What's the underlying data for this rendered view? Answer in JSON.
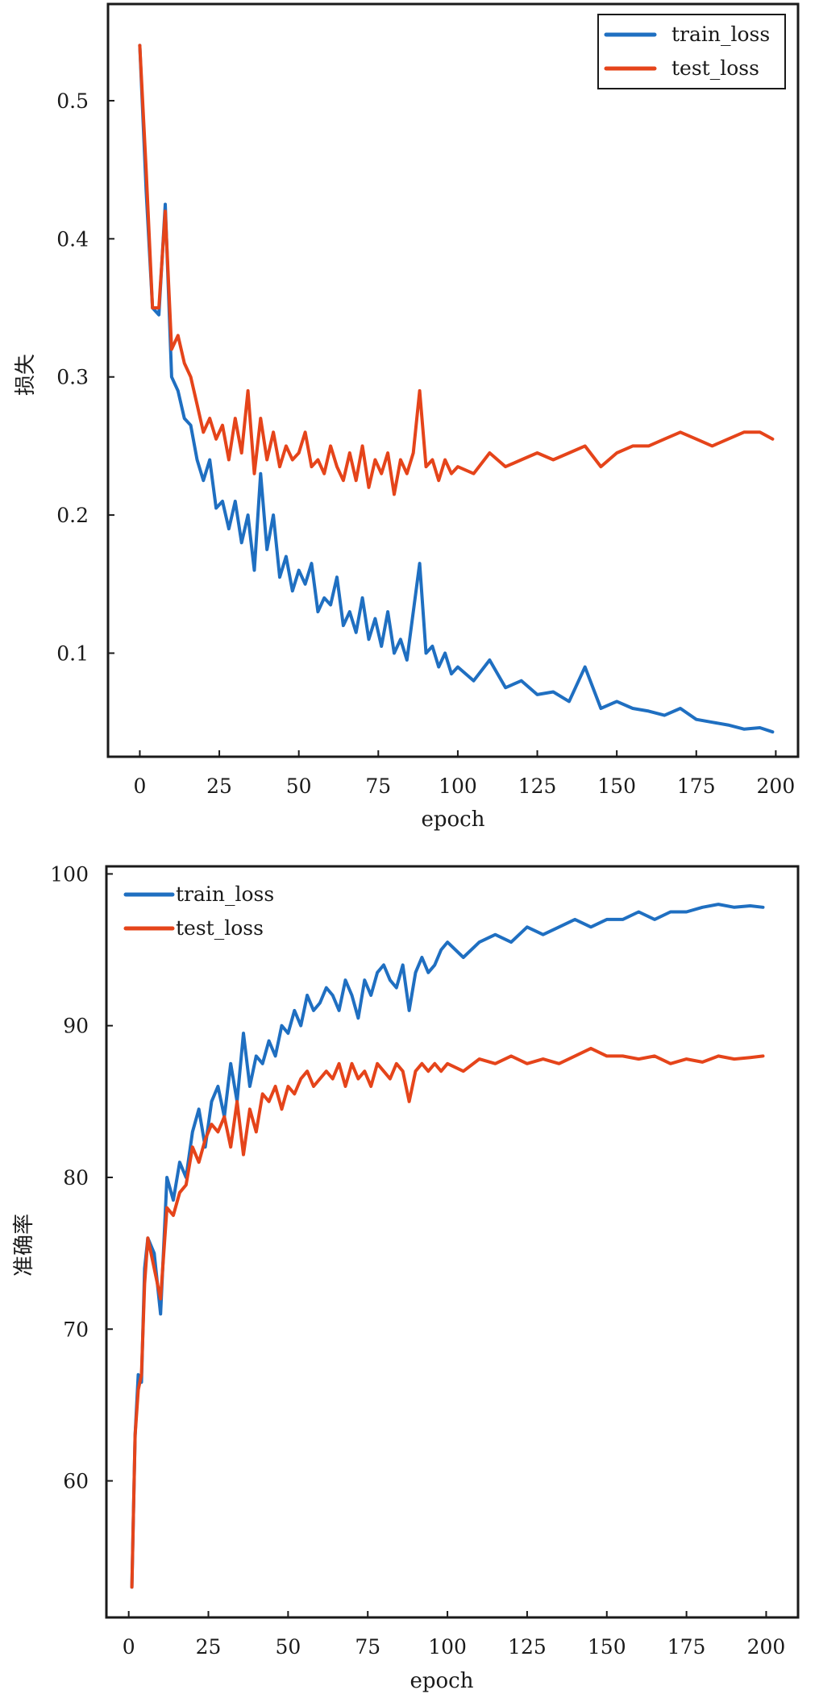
{
  "colors": {
    "train": "#1f6fc1",
    "test": "#e5441a"
  },
  "chart_data": [
    {
      "type": "line",
      "xlabel": "epoch",
      "ylabel": "损失",
      "xlim": [
        -10,
        207
      ],
      "ylim": [
        0.025,
        0.57
      ],
      "xticks": [
        0,
        25,
        50,
        75,
        100,
        125,
        150,
        175,
        200
      ],
      "xtick_labels": [
        "0",
        "25",
        "50",
        "75",
        "100",
        "125",
        "150",
        "175",
        "200"
      ],
      "yticks": [
        0.1,
        0.2,
        0.3,
        0.4,
        0.5
      ],
      "ytick_labels": [
        "0.1",
        "0.2",
        "0.3",
        "0.4",
        "0.5"
      ],
      "grid": false,
      "legend_position": "top-right",
      "series": [
        {
          "name": "train_loss",
          "color": "#1f6fc1",
          "x": [
            0,
            2,
            4,
            6,
            8,
            10,
            12,
            14,
            16,
            18,
            20,
            22,
            24,
            26,
            28,
            30,
            32,
            34,
            36,
            38,
            40,
            42,
            44,
            46,
            48,
            50,
            52,
            54,
            56,
            58,
            60,
            62,
            64,
            66,
            68,
            70,
            72,
            74,
            76,
            78,
            80,
            82,
            84,
            86,
            88,
            90,
            92,
            94,
            96,
            98,
            100,
            105,
            110,
            115,
            120,
            125,
            130,
            135,
            140,
            145,
            150,
            155,
            160,
            165,
            170,
            175,
            180,
            185,
            190,
            195,
            199
          ],
          "y": [
            0.54,
            0.435,
            0.35,
            0.345,
            0.425,
            0.3,
            0.29,
            0.27,
            0.265,
            0.24,
            0.225,
            0.24,
            0.205,
            0.21,
            0.19,
            0.21,
            0.18,
            0.2,
            0.16,
            0.23,
            0.175,
            0.2,
            0.155,
            0.17,
            0.145,
            0.16,
            0.15,
            0.165,
            0.13,
            0.14,
            0.135,
            0.155,
            0.12,
            0.13,
            0.115,
            0.14,
            0.11,
            0.125,
            0.105,
            0.13,
            0.1,
            0.11,
            0.095,
            0.13,
            0.165,
            0.1,
            0.105,
            0.09,
            0.1,
            0.085,
            0.09,
            0.08,
            0.095,
            0.075,
            0.08,
            0.07,
            0.072,
            0.065,
            0.09,
            0.06,
            0.065,
            0.06,
            0.058,
            0.055,
            0.06,
            0.052,
            0.05,
            0.048,
            0.045,
            0.046,
            0.043
          ]
        },
        {
          "name": "test_loss",
          "color": "#e5441a",
          "x": [
            0,
            2,
            4,
            6,
            8,
            10,
            12,
            14,
            16,
            18,
            20,
            22,
            24,
            26,
            28,
            30,
            32,
            34,
            36,
            38,
            40,
            42,
            44,
            46,
            48,
            50,
            52,
            54,
            56,
            58,
            60,
            62,
            64,
            66,
            68,
            70,
            72,
            74,
            76,
            78,
            80,
            82,
            84,
            86,
            88,
            90,
            92,
            94,
            96,
            98,
            100,
            105,
            110,
            115,
            120,
            125,
            130,
            135,
            140,
            145,
            150,
            155,
            160,
            165,
            170,
            175,
            180,
            185,
            190,
            195,
            199
          ],
          "y": [
            0.54,
            0.45,
            0.35,
            0.35,
            0.42,
            0.32,
            0.33,
            0.31,
            0.3,
            0.28,
            0.26,
            0.27,
            0.255,
            0.265,
            0.24,
            0.27,
            0.245,
            0.29,
            0.23,
            0.27,
            0.24,
            0.26,
            0.235,
            0.25,
            0.24,
            0.245,
            0.26,
            0.235,
            0.24,
            0.23,
            0.25,
            0.235,
            0.225,
            0.245,
            0.225,
            0.25,
            0.22,
            0.24,
            0.23,
            0.245,
            0.215,
            0.24,
            0.23,
            0.245,
            0.29,
            0.235,
            0.24,
            0.225,
            0.24,
            0.23,
            0.235,
            0.23,
            0.245,
            0.235,
            0.24,
            0.245,
            0.24,
            0.245,
            0.25,
            0.235,
            0.245,
            0.25,
            0.25,
            0.255,
            0.26,
            0.255,
            0.25,
            0.255,
            0.26,
            0.26,
            0.255
          ]
        }
      ]
    },
    {
      "type": "line",
      "xlabel": "epoch",
      "ylabel": "准确率",
      "xlim": [
        -7,
        210
      ],
      "ylim": [
        51,
        100.5
      ],
      "xticks": [
        0,
        25,
        50,
        75,
        100,
        125,
        150,
        175,
        200
      ],
      "xtick_labels": [
        "0",
        "25",
        "50",
        "75",
        "100",
        "125",
        "150",
        "175",
        "200"
      ],
      "yticks": [
        60,
        70,
        80,
        90,
        100
      ],
      "ytick_labels": [
        "60",
        "70",
        "80",
        "90",
        "100"
      ],
      "grid": false,
      "legend_position": "top-left",
      "series": [
        {
          "name": "train_loss",
          "color": "#1f6fc1",
          "x": [
            1,
            2,
            3,
            4,
            5,
            6,
            8,
            10,
            12,
            14,
            16,
            18,
            20,
            22,
            24,
            26,
            28,
            30,
            32,
            34,
            36,
            38,
            40,
            42,
            44,
            46,
            48,
            50,
            52,
            54,
            56,
            58,
            60,
            62,
            64,
            66,
            68,
            70,
            72,
            74,
            76,
            78,
            80,
            82,
            84,
            86,
            88,
            90,
            92,
            94,
            96,
            98,
            100,
            105,
            110,
            115,
            120,
            125,
            130,
            135,
            140,
            145,
            150,
            155,
            160,
            165,
            170,
            175,
            180,
            185,
            190,
            195,
            199
          ],
          "y": [
            53,
            63,
            67,
            66.5,
            74,
            76,
            75,
            71,
            80,
            78.5,
            81,
            80,
            83,
            84.5,
            82,
            85,
            86,
            84,
            87.5,
            85,
            89.5,
            86,
            88,
            87.5,
            89,
            88,
            90,
            89.5,
            91,
            90,
            92,
            91,
            91.5,
            92.5,
            92,
            91,
            93,
            92,
            90.5,
            93,
            92,
            93.5,
            94,
            93,
            92.5,
            94,
            91,
            93.5,
            94.5,
            93.5,
            94,
            95,
            95.5,
            94.5,
            95.5,
            96,
            95.5,
            96.5,
            96,
            96.5,
            97,
            96.5,
            97,
            97,
            97.5,
            97,
            97.5,
            97.5,
            97.8,
            98,
            97.8,
            97.9,
            97.8
          ]
        },
        {
          "name": "test_loss",
          "color": "#e5441a",
          "x": [
            1,
            2,
            3,
            4,
            5,
            6,
            8,
            10,
            12,
            14,
            16,
            18,
            20,
            22,
            24,
            26,
            28,
            30,
            32,
            34,
            36,
            38,
            40,
            42,
            44,
            46,
            48,
            50,
            52,
            54,
            56,
            58,
            60,
            62,
            64,
            66,
            68,
            70,
            72,
            74,
            76,
            78,
            80,
            82,
            84,
            86,
            88,
            90,
            92,
            94,
            96,
            98,
            100,
            105,
            110,
            115,
            120,
            125,
            130,
            135,
            140,
            145,
            150,
            155,
            160,
            165,
            170,
            175,
            180,
            185,
            190,
            195,
            199
          ],
          "y": [
            53,
            63,
            66,
            67,
            73,
            76,
            74,
            72,
            78,
            77.5,
            79,
            79.5,
            82,
            81,
            82.5,
            83.5,
            83,
            84,
            82,
            85,
            81.5,
            84.5,
            83,
            85.5,
            85,
            86,
            84.5,
            86,
            85.5,
            86.5,
            87,
            86,
            86.5,
            87,
            86.5,
            87.5,
            86,
            87.5,
            86.5,
            87,
            86,
            87.5,
            87,
            86.5,
            87.5,
            87,
            85,
            87,
            87.5,
            87,
            87.5,
            87,
            87.5,
            87,
            87.8,
            87.5,
            88,
            87.5,
            87.8,
            87.5,
            88,
            88.5,
            88,
            88,
            87.8,
            88,
            87.5,
            87.8,
            87.6,
            88,
            87.8,
            87.9,
            88
          ]
        }
      ]
    }
  ]
}
